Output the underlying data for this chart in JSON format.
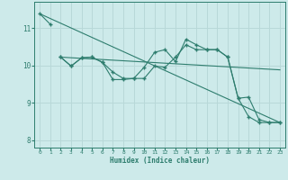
{
  "background_color": "#cdeaea",
  "grid_color": "#b8d8d8",
  "line_color": "#2e7d6e",
  "xlabel": "Humidex (Indice chaleur)",
  "xlim": [
    -0.5,
    23.5
  ],
  "ylim": [
    7.8,
    11.7
  ],
  "yticks": [
    8,
    9,
    10,
    11
  ],
  "xticks": [
    0,
    1,
    2,
    3,
    4,
    5,
    6,
    7,
    8,
    9,
    10,
    11,
    12,
    13,
    14,
    15,
    16,
    17,
    18,
    19,
    20,
    21,
    22,
    23
  ],
  "trend1_x": [
    0,
    23
  ],
  "trend1_y": [
    11.38,
    8.47
  ],
  "trend2_x": [
    2,
    23
  ],
  "trend2_y": [
    10.22,
    9.88
  ],
  "series1_x": [
    0,
    1
  ],
  "series1_y": [
    11.38,
    11.1
  ],
  "series2_x": [
    2,
    3,
    4,
    5,
    6,
    7,
    8,
    9,
    10,
    11,
    12,
    13,
    14,
    15,
    16,
    17,
    18,
    19,
    20,
    21,
    22,
    23
  ],
  "series2_y": [
    10.22,
    9.98,
    10.2,
    10.22,
    10.08,
    9.62,
    9.62,
    9.65,
    9.65,
    9.98,
    9.95,
    10.22,
    10.55,
    10.42,
    10.42,
    10.42,
    10.22,
    9.12,
    8.63,
    8.47,
    8.47,
    8.47
  ],
  "series3_x": [
    2,
    3,
    4,
    5,
    6,
    7,
    8,
    9,
    10,
    11,
    12,
    13,
    14,
    15,
    16,
    17,
    18,
    19,
    20,
    21,
    22,
    23
  ],
  "series3_y": [
    10.22,
    9.98,
    10.2,
    10.22,
    10.08,
    9.82,
    9.65,
    9.65,
    9.95,
    10.35,
    10.42,
    10.1,
    10.7,
    10.55,
    10.42,
    10.42,
    10.22,
    9.12,
    9.15,
    8.55,
    8.47,
    8.47
  ]
}
